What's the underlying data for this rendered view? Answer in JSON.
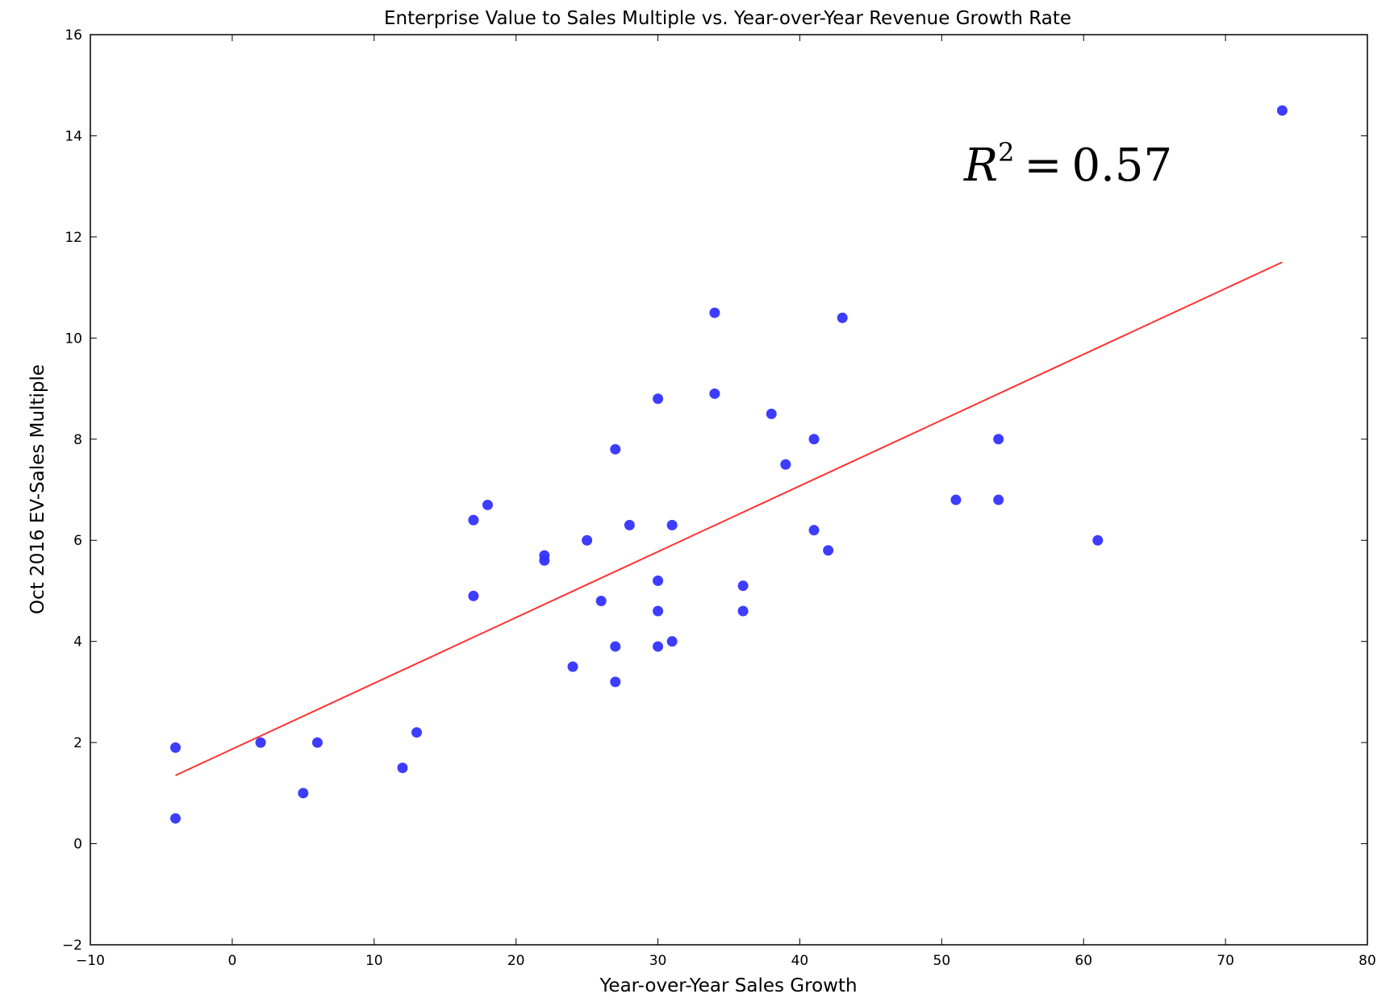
{
  "chart_data": {
    "type": "scatter",
    "title": "Enterprise Value to Sales Multiple vs. Year-over-Year Revenue Growth Rate",
    "xlabel": "Year-over-Year Sales Growth",
    "ylabel": "Oct 2016 EV-Sales Multiple",
    "xlim": [
      -10,
      80
    ],
    "ylim": [
      -2,
      16
    ],
    "xticks": [
      -10,
      0,
      10,
      20,
      30,
      40,
      50,
      60,
      70,
      80
    ],
    "yticks": [
      -2,
      0,
      2,
      4,
      6,
      8,
      10,
      12,
      14,
      16
    ],
    "xtick_labels": [
      "−10",
      "0",
      "10",
      "20",
      "30",
      "40",
      "50",
      "60",
      "70",
      "80"
    ],
    "ytick_labels": [
      "−2",
      "0",
      "2",
      "4",
      "6",
      "8",
      "10",
      "12",
      "14",
      "16"
    ],
    "grid": false,
    "point_color": "#3333ff",
    "line_color": "#ff3333",
    "points": [
      {
        "x": -4,
        "y": 1.9
      },
      {
        "x": -4,
        "y": 0.5
      },
      {
        "x": 2,
        "y": 2.0
      },
      {
        "x": 5,
        "y": 1.0
      },
      {
        "x": 6,
        "y": 2.0
      },
      {
        "x": 12,
        "y": 1.5
      },
      {
        "x": 13,
        "y": 2.2
      },
      {
        "x": 17,
        "y": 6.4
      },
      {
        "x": 17,
        "y": 4.9
      },
      {
        "x": 18,
        "y": 6.7
      },
      {
        "x": 22,
        "y": 5.7
      },
      {
        "x": 22,
        "y": 5.6
      },
      {
        "x": 24,
        "y": 3.5
      },
      {
        "x": 25,
        "y": 6.0
      },
      {
        "x": 26,
        "y": 4.8
      },
      {
        "x": 27,
        "y": 7.8
      },
      {
        "x": 27,
        "y": 3.9
      },
      {
        "x": 27,
        "y": 3.2
      },
      {
        "x": 28,
        "y": 6.3
      },
      {
        "x": 30,
        "y": 8.8
      },
      {
        "x": 30,
        "y": 5.2
      },
      {
        "x": 30,
        "y": 4.6
      },
      {
        "x": 30,
        "y": 3.9
      },
      {
        "x": 31,
        "y": 6.3
      },
      {
        "x": 31,
        "y": 4.0
      },
      {
        "x": 34,
        "y": 10.5
      },
      {
        "x": 34,
        "y": 8.9
      },
      {
        "x": 36,
        "y": 5.1
      },
      {
        "x": 36,
        "y": 4.6
      },
      {
        "x": 38,
        "y": 8.5
      },
      {
        "x": 39,
        "y": 7.5
      },
      {
        "x": 41,
        "y": 8.0
      },
      {
        "x": 41,
        "y": 6.2
      },
      {
        "x": 42,
        "y": 5.8
      },
      {
        "x": 43,
        "y": 10.4
      },
      {
        "x": 51,
        "y": 6.8
      },
      {
        "x": 54,
        "y": 8.0
      },
      {
        "x": 54,
        "y": 6.8
      },
      {
        "x": 61,
        "y": 6.0
      },
      {
        "x": 74,
        "y": 14.5
      }
    ],
    "fit_line": {
      "x": [
        -4,
        74
      ],
      "y": [
        1.35,
        11.5
      ]
    },
    "annotation": {
      "prefix": "R",
      "superscript": "2",
      "equals": "=",
      "value": "0.57"
    }
  }
}
